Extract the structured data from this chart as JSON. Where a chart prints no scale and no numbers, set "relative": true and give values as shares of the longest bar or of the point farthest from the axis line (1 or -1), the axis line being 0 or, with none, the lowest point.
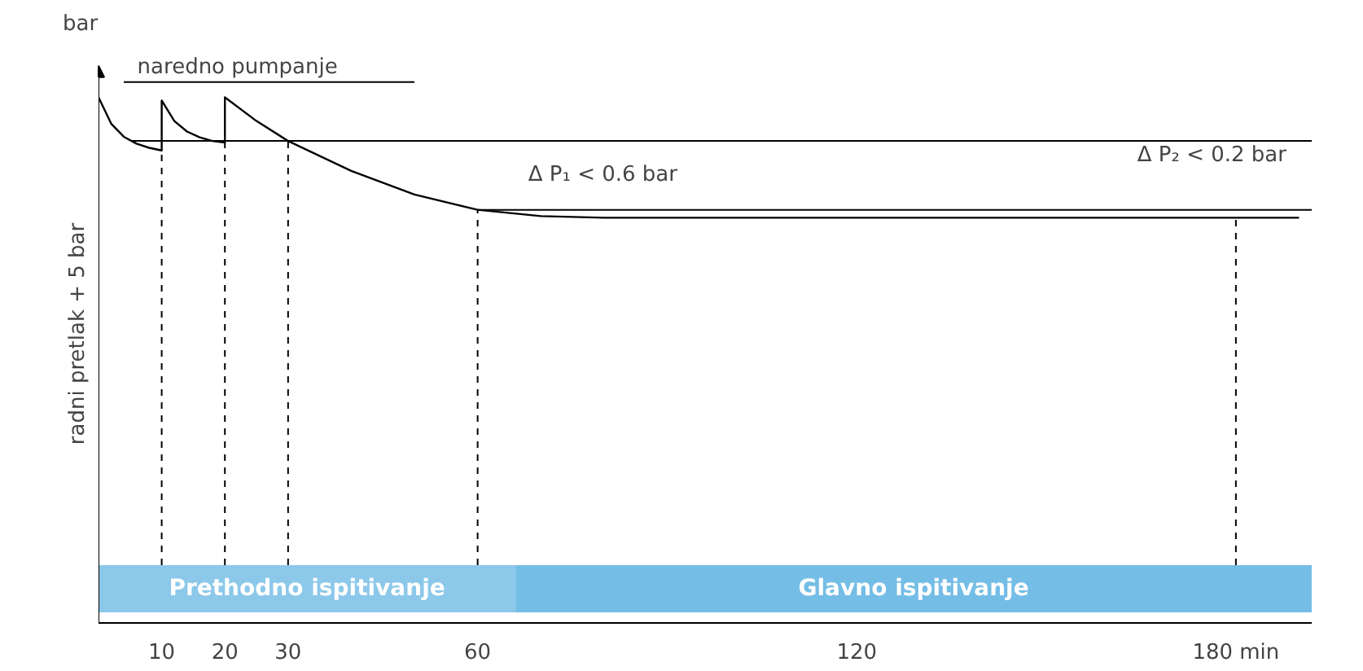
{
  "chart_data": {
    "type": "line",
    "relative": true,
    "xlabel": null,
    "ylabel": "radni pretlak + 5 bar",
    "x": [
      0,
      2,
      4,
      6,
      8,
      10,
      10,
      12,
      14,
      16,
      18,
      20,
      20,
      25,
      30,
      40,
      50,
      60,
      70,
      80,
      100,
      150,
      190
    ],
    "series": [
      {
        "color": "#000000",
        "values": [
          1.0,
          0.95,
          0.925,
          0.912,
          0.904,
          0.899,
          0.994,
          0.955,
          0.935,
          0.924,
          0.917,
          0.914,
          1.0,
          0.955,
          0.917,
          0.86,
          0.815,
          0.786,
          0.774,
          0.771,
          0.771,
          0.771,
          0.771
        ]
      }
    ],
    "xlim": [
      0,
      192
    ],
    "xticks": [
      10,
      20,
      30,
      60,
      120,
      {
        "value": 180,
        "label": "180 min"
      }
    ],
    "ref_lines": [
      {
        "axis": "y",
        "value": 0.917,
        "color": "#000000",
        "line_style": "solid"
      },
      {
        "axis": "y",
        "value": 0.786,
        "color": "#000000",
        "line_style": "solid"
      },
      {
        "axis": "x",
        "value": 10,
        "color": "#000000",
        "line_style": "dashed"
      },
      {
        "axis": "x",
        "value": 20,
        "color": "#000000",
        "line_style": "dashed"
      },
      {
        "axis": "x",
        "value": 30,
        "color": "#000000",
        "line_style": "dashed"
      },
      {
        "axis": "x",
        "value": 60,
        "color": "#000000",
        "line_style": "dashed"
      },
      {
        "axis": "x",
        "value": 180,
        "color": "#000000",
        "line_style": "dashed"
      }
    ],
    "bands": [
      {
        "axis": "x",
        "from": 0,
        "to": 66,
        "label": "Prethodno ispitivanje",
        "color": "#8cc8ea"
      },
      {
        "axis": "x",
        "from": 66,
        "to": 192,
        "label": "Glavno ispitivanje",
        "color": "#74bde6"
      }
    ],
    "annotations": [
      "bar",
      {
        "text": "naredno pumpanje",
        "x": 10,
        "y": 0.994
      },
      "Δ P₁ < 0.6 bar",
      {
        "text": "Δ P₂ < 0.2 bar",
        "x": 188,
        "y": 0.786
      }
    ],
    "grid": false,
    "marker": "none",
    "line_style": "solid"
  }
}
